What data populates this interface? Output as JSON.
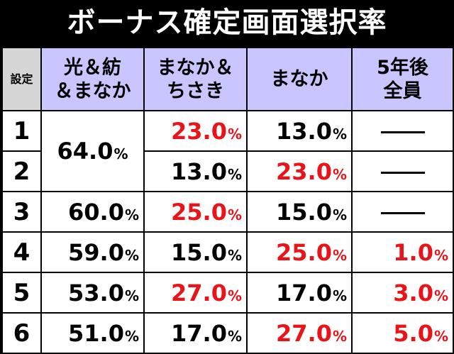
{
  "title": "ボーナス確定画面選択率",
  "headers": {
    "setting": "設定",
    "col1": [
      "光＆紡",
      "＆まなか"
    ],
    "col2": [
      "まなか＆",
      "ちさき"
    ],
    "col3": "まなか",
    "col4": [
      "5年後",
      "全員"
    ]
  },
  "merged_value": "64.0",
  "pct": "%",
  "rows": [
    {
      "setting": "1",
      "c2": "23.0",
      "c3": "13.0",
      "c4": null
    },
    {
      "setting": "2",
      "c2": "13.0",
      "c3": "23.0",
      "c4": null
    },
    {
      "setting": "3",
      "c1": "60.0",
      "c2": "25.0",
      "c3": "15.0",
      "c4": null
    },
    {
      "setting": "4",
      "c1": "59.0",
      "c2": "15.0",
      "c3": "25.0",
      "c4": "1.0"
    },
    {
      "setting": "5",
      "c1": "53.0",
      "c2": "27.0",
      "c3": "17.0",
      "c4": "3.0"
    },
    {
      "setting": "6",
      "c1": "51.0",
      "c2": "17.0",
      "c3": "27.0",
      "c4": "5.0"
    }
  ],
  "colors": {
    "highlight": "#e8141a",
    "header": "#c9c6ff",
    "setting_header": "#d6d6d6"
  }
}
